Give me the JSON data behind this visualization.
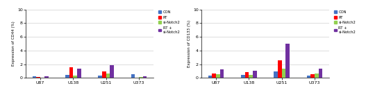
{
  "categories": [
    "U87",
    "U138",
    "U251",
    "U373"
  ],
  "groups": [
    "CON",
    "RT",
    "si-Notch2",
    "RT +\nsi-Notch2"
  ],
  "colors": [
    "#4472c4",
    "#ff0000",
    "#92d050",
    "#7030a0"
  ],
  "cd44_values": [
    [
      0.2,
      0.1,
      0.05,
      0.2
    ],
    [
      0.4,
      1.6,
      0.35,
      1.4
    ],
    [
      0.3,
      0.9,
      0.6,
      1.9
    ],
    [
      0.5,
      0.05,
      0.1,
      0.2
    ]
  ],
  "cd133_values": [
    [
      0.3,
      0.6,
      0.5,
      1.3
    ],
    [
      0.45,
      0.85,
      0.4,
      1.05
    ],
    [
      0.9,
      2.6,
      1.4,
      5.0
    ],
    [
      0.35,
      0.5,
      0.6,
      1.35
    ]
  ],
  "cd44_ylabel": "Expression of CD44 (%)",
  "cd133_ylabel": "Expression of CD133 (%)",
  "ylim": [
    0,
    10
  ],
  "yticks": [
    0,
    2,
    4,
    6,
    8,
    10
  ],
  "legend_labels": [
    "CON",
    "RT",
    "si-Notch2",
    "RT +\nsi-Notch2"
  ],
  "background_color": "#ffffff",
  "grid_color": "#d0d0d0"
}
